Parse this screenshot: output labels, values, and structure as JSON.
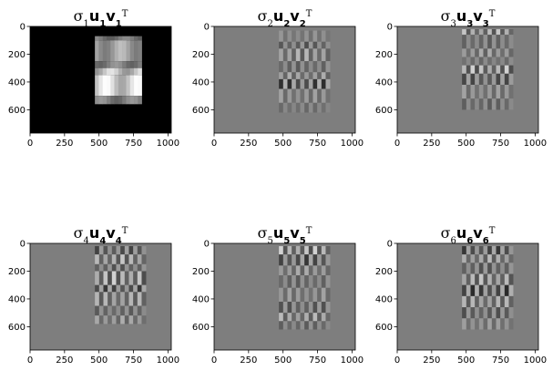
{
  "chart_data": [
    {
      "type": "heatmap",
      "title": {
        "sigma": "σ",
        "k": "1",
        "u": "u",
        "v": "v",
        "T": "T"
      },
      "xticks": [
        "0",
        "250",
        "500",
        "750",
        "1000"
      ],
      "yticks": [
        "0",
        "200",
        "400",
        "600"
      ],
      "xlim": [
        0,
        1024
      ],
      "ylim": [
        768,
        0
      ],
      "colormap": "gray",
      "mode": "low",
      "rows": [
        {
          "y0": 70,
          "y1": 100,
          "v": 0.55
        },
        {
          "y0": 100,
          "y1": 250,
          "v": 0.75
        },
        {
          "y0": 250,
          "y1": 300,
          "v": 0.6
        },
        {
          "y0": 300,
          "y1": 350,
          "v": 0.9
        },
        {
          "y0": 350,
          "y1": 500,
          "v": 1.0
        },
        {
          "y0": 500,
          "y1": 560,
          "v": 0.6
        }
      ],
      "cols": {
        "x0": 470,
        "x1": 810
      }
    },
    {
      "type": "heatmap",
      "title": {
        "sigma": "σ",
        "k": "2",
        "u": "u",
        "v": "v",
        "T": "T"
      },
      "xticks": [
        "0",
        "250",
        "500",
        "750",
        "1000"
      ],
      "yticks": [
        "0",
        "200",
        "400",
        "600"
      ],
      "xlim": [
        0,
        1024
      ],
      "ylim": [
        768,
        0
      ],
      "colormap": "gray",
      "mode": "mid",
      "rows": [
        {
          "y0": 30,
          "y1": 110,
          "v": 0.2
        },
        {
          "y0": 110,
          "y1": 160,
          "v": -0.4
        },
        {
          "y0": 160,
          "y1": 250,
          "v": 0.5
        },
        {
          "y0": 250,
          "y1": 330,
          "v": -0.3
        },
        {
          "y0": 330,
          "y1": 380,
          "v": 0.4
        },
        {
          "y0": 380,
          "y1": 450,
          "v": -0.7
        },
        {
          "y0": 450,
          "y1": 550,
          "v": 0.3
        },
        {
          "y0": 550,
          "y1": 620,
          "v": -0.2
        }
      ],
      "cols": {
        "x0": 470,
        "x1": 840
      }
    },
    {
      "type": "heatmap",
      "title": {
        "sigma": "σ",
        "k": "3",
        "u": "u",
        "v": "v",
        "T": "T"
      },
      "xticks": [
        "0",
        "250",
        "500",
        "750",
        "1000"
      ],
      "yticks": [
        "0",
        "200",
        "400",
        "600"
      ],
      "xlim": [
        0,
        1024
      ],
      "ylim": [
        768,
        0
      ],
      "colormap": "gray",
      "mode": "mid",
      "rows": [
        {
          "y0": 20,
          "y1": 60,
          "v": 0.6
        },
        {
          "y0": 60,
          "y1": 160,
          "v": -0.3
        },
        {
          "y0": 160,
          "y1": 220,
          "v": 0.4
        },
        {
          "y0": 220,
          "y1": 280,
          "v": -0.2
        },
        {
          "y0": 280,
          "y1": 340,
          "v": 0.7
        },
        {
          "y0": 340,
          "y1": 420,
          "v": -0.5
        },
        {
          "y0": 420,
          "y1": 520,
          "v": 0.3
        },
        {
          "y0": 520,
          "y1": 600,
          "v": -0.3
        }
      ],
      "cols": {
        "x0": 470,
        "x1": 840
      }
    },
    {
      "type": "heatmap",
      "title": {
        "sigma": "σ",
        "k": "4",
        "u": "u",
        "v": "v",
        "T": "T"
      },
      "xticks": [
        "0",
        "250",
        "500",
        "750",
        "1000"
      ],
      "yticks": [
        "0",
        "200",
        "400",
        "600"
      ],
      "xlim": [
        0,
        1024
      ],
      "ylim": [
        768,
        0
      ],
      "colormap": "gray",
      "mode": "mid",
      "rows": [
        {
          "y0": 20,
          "y1": 80,
          "v": -0.5
        },
        {
          "y0": 80,
          "y1": 150,
          "v": 0.6
        },
        {
          "y0": 150,
          "y1": 200,
          "v": -0.4
        },
        {
          "y0": 200,
          "y1": 300,
          "v": 0.7
        },
        {
          "y0": 300,
          "y1": 350,
          "v": -0.6
        },
        {
          "y0": 350,
          "y1": 450,
          "v": 0.5
        },
        {
          "y0": 450,
          "y1": 520,
          "v": -0.3
        },
        {
          "y0": 520,
          "y1": 580,
          "v": 0.4
        }
      ],
      "cols": {
        "x0": 470,
        "x1": 840
      }
    },
    {
      "type": "heatmap",
      "title": {
        "sigma": "σ",
        "k": "5",
        "u": "u",
        "v": "v",
        "T": "T"
      },
      "xticks": [
        "0",
        "250",
        "500",
        "750",
        "1000"
      ],
      "yticks": [
        "0",
        "200",
        "400",
        "600"
      ],
      "xlim": [
        0,
        1024
      ],
      "ylim": [
        768,
        0
      ],
      "colormap": "gray",
      "mode": "mid",
      "rows": [
        {
          "y0": 20,
          "y1": 80,
          "v": 0.7
        },
        {
          "y0": 80,
          "y1": 160,
          "v": -0.6
        },
        {
          "y0": 160,
          "y1": 230,
          "v": 0.4
        },
        {
          "y0": 230,
          "y1": 320,
          "v": -0.3
        },
        {
          "y0": 320,
          "y1": 420,
          "v": 0.3
        },
        {
          "y0": 420,
          "y1": 500,
          "v": -0.4
        },
        {
          "y0": 500,
          "y1": 560,
          "v": 0.5
        },
        {
          "y0": 560,
          "y1": 620,
          "v": -0.3
        }
      ],
      "cols": {
        "x0": 470,
        "x1": 840
      }
    },
    {
      "type": "heatmap",
      "title": {
        "sigma": "σ",
        "k": "6",
        "u": "u",
        "v": "v",
        "T": "T"
      },
      "xticks": [
        "0",
        "250",
        "500",
        "750",
        "1000"
      ],
      "yticks": [
        "0",
        "200",
        "400",
        "600"
      ],
      "xlim": [
        0,
        1024
      ],
      "ylim": [
        768,
        0
      ],
      "colormap": "gray",
      "mode": "mid",
      "rows": [
        {
          "y0": 20,
          "y1": 80,
          "v": -0.6
        },
        {
          "y0": 80,
          "y1": 140,
          "v": 0.5
        },
        {
          "y0": 140,
          "y1": 220,
          "v": -0.4
        },
        {
          "y0": 220,
          "y1": 300,
          "v": 0.6
        },
        {
          "y0": 300,
          "y1": 380,
          "v": -0.7
        },
        {
          "y0": 380,
          "y1": 460,
          "v": 0.5
        },
        {
          "y0": 460,
          "y1": 540,
          "v": -0.4
        },
        {
          "y0": 540,
          "y1": 620,
          "v": 0.3
        }
      ],
      "cols": {
        "x0": 470,
        "x1": 840
      }
    }
  ]
}
